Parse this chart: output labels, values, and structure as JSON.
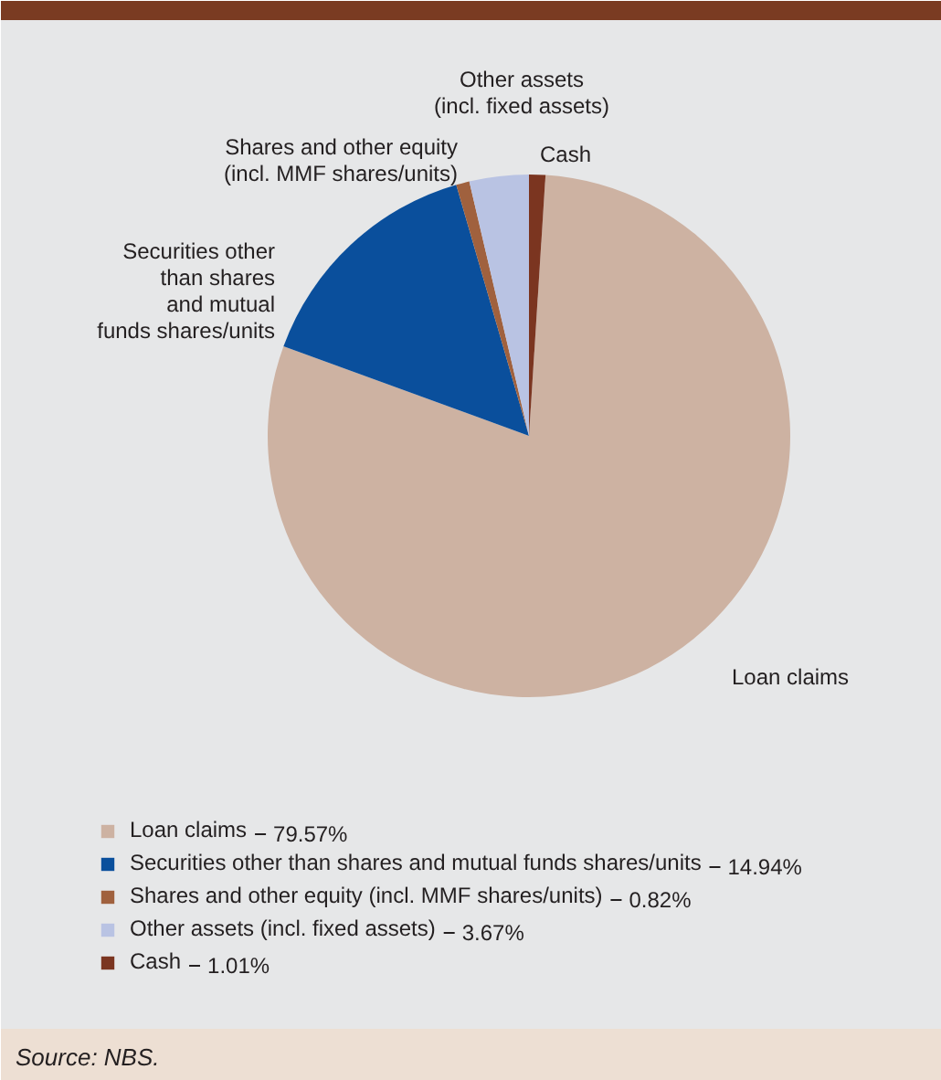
{
  "chart_data": {
    "type": "pie",
    "categories": [
      "Loan claims",
      "Securities other than shares and mutual funds shares/units",
      "Shares and other equity (incl. MMF shares/units)",
      "Other assets (incl. fixed assets)",
      "Cash"
    ],
    "values": [
      79.57,
      14.94,
      0.82,
      3.67,
      1.01
    ],
    "value_labels": [
      "79.57%",
      "14.94%",
      "0.82%",
      "3.67%",
      "1.01%"
    ],
    "colors": [
      "#cdb2a2",
      "#0a4f9c",
      "#a0613e",
      "#b9c3e3",
      "#7b3520"
    ],
    "legend": "bottom",
    "annotations": [
      "Source: NBS."
    ]
  }
}
